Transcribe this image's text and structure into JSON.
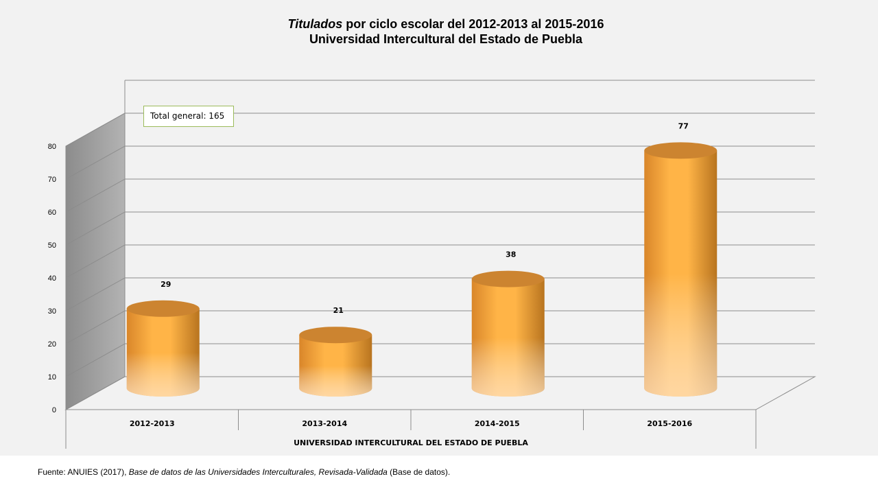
{
  "title": {
    "italic_part": "Titulados",
    "rest": " por ciclo escolar del  2012-2013 al 2015-2016",
    "line2": "Universidad Intercultural del Estado de Puebla"
  },
  "annotation": {
    "total_label": "Total general: 165"
  },
  "chart_data": {
    "type": "bar",
    "style": "3d-cylinder",
    "categories": [
      "2012-2013",
      "2013-2014",
      "2014-2015",
      "2015-2016"
    ],
    "values": [
      29,
      21,
      38,
      77
    ],
    "xlabel": "UNIVERSIDAD INTERCULTURAL DEL ESTADO DE PUEBLA",
    "ylabel": "",
    "ylim": [
      0,
      80
    ],
    "yticks": [
      0,
      10,
      20,
      30,
      40,
      50,
      60,
      70,
      80
    ],
    "grid": true,
    "colors": {
      "bar": "#ffb347",
      "bar_dark": "#c97a20",
      "bar_light": "#ffd5a0",
      "side_wall": "#a6a6a6"
    }
  },
  "source": {
    "prefix": "Fuente: ANUIES (2017),  ",
    "italic_part": "Base de datos de las Universidades  Interculturales, Revisada-Validada",
    "suffix": "  (Base de datos)."
  }
}
